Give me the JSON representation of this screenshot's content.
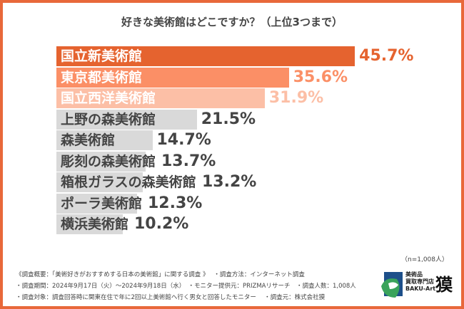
{
  "chart_data": {
    "type": "bar",
    "orientation": "horizontal",
    "title": "好きな美術館はどこですか？（上位3つまで）",
    "categories": [
      "国立新美術館",
      "東京都美術館",
      "国立西洋美術館",
      "上野の森美術館",
      "森美術館",
      "彫刻の森美術館",
      "箱根ガラスの森美術館",
      "ポーラ美術館",
      "横浜美術館"
    ],
    "values": [
      45.7,
      35.6,
      31.9,
      21.5,
      14.7,
      13.7,
      13.2,
      12.3,
      10.2
    ],
    "value_labels": [
      "45.7%",
      "35.6%",
      "31.9%",
      "21.5%",
      "14.7%",
      "13.7%",
      "13.2%",
      "12.3%",
      "10.2%"
    ],
    "bar_colors": [
      "#e5632f",
      "#fb8f66",
      "#fcbfa6",
      "#d9d9d9",
      "#d9d9d9",
      "#d9d9d9",
      "#d9d9d9",
      "#d9d9d9",
      "#d9d9d9"
    ],
    "label_colors": [
      "#ffffff",
      "#ffffff",
      "#ffffff",
      "#444444",
      "#444444",
      "#444444",
      "#444444",
      "#444444",
      "#444444"
    ],
    "value_colors": [
      "#e5632f",
      "#fb8f66",
      "#fcbfa6",
      "#444444",
      "#444444",
      "#444444",
      "#444444",
      "#444444",
      "#444444"
    ],
    "grid": false,
    "legend": "none"
  },
  "sample_size": "（n=1,008人）",
  "notes": [
    "《調査概要：「美術好きがおすすめする日本の美術館」に関する調査 》　 ・調査方法：インターネット調査",
    "・調査期間：2024年9月17日（火）～2024年9月18日（水）　・モニター提供元：PRIZMAリサーチ　・調査人数：1,008人",
    "・調査対象：調査回答時に関東在住で年に2回以上美術館へ行く男女と回答したモニター　 ・調査元：株式会社獏"
  ],
  "logo": {
    "line1": "美術品",
    "line2": "買取専門店",
    "line3": "BAKU-Art",
    "kanji": "獏"
  },
  "colors": {
    "border": "#e8683a"
  }
}
